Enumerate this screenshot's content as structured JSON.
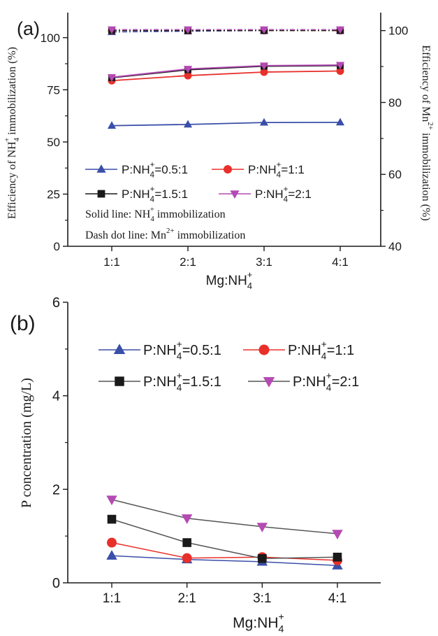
{
  "chart_data": [
    {
      "panel_label": "(a)",
      "type": "line",
      "categories": [
        "1:1",
        "2:1",
        "3:1",
        "4:1"
      ],
      "xlabel": "Mg:NH4+",
      "ylabel_left": "Efficiency of NH4+ immobilization (%)",
      "ylabel_right": "Efficiency of Mn2+ immobilization (%)",
      "ylim_left": [
        0,
        112
      ],
      "yticks_left": [
        0,
        25,
        50,
        75,
        100
      ],
      "ylim_right": [
        40,
        105
      ],
      "yticks_right": [
        40,
        60,
        80,
        100
      ],
      "series": [
        {
          "name": "P:NH4+=0.5:1",
          "axis": "left",
          "style": "solid",
          "marker": "triangle-up",
          "color": "#3a4fa8",
          "values": [
            57.8,
            58.4,
            59.3,
            59.4
          ]
        },
        {
          "name": "P:NH4+=1:1",
          "axis": "left",
          "style": "solid",
          "marker": "circle",
          "color": "#e8302a",
          "values": [
            79.4,
            81.8,
            83.5,
            84.0
          ]
        },
        {
          "name": "P:NH4+=1.5:1",
          "axis": "left",
          "style": "solid",
          "marker": "square",
          "color": "#1a1a1a",
          "values": [
            80.8,
            84.6,
            86.3,
            86.6
          ]
        },
        {
          "name": "P:NH4+=2:1",
          "axis": "left",
          "style": "solid",
          "marker": "triangle-down",
          "color": "#b44ab4",
          "values": [
            81.0,
            85.0,
            86.6,
            86.9
          ]
        },
        {
          "name": "P:NH4+=0.5:1",
          "axis": "right",
          "style": "dashdot",
          "marker": "triangle-up",
          "color": "#3a4fa8",
          "values": [
            99.6,
            99.8,
            100.0,
            100.0
          ]
        },
        {
          "name": "P:NH4+=1:1",
          "axis": "right",
          "style": "dashdot",
          "marker": "circle",
          "color": "#e8302a",
          "values": [
            100.0,
            100.0,
            100.0,
            100.0
          ]
        },
        {
          "name": "P:NH4+=1.5:1",
          "axis": "right",
          "style": "dashdot",
          "marker": "square",
          "color": "#1a1a1a",
          "values": [
            100.0,
            100.0,
            100.0,
            100.0
          ]
        },
        {
          "name": "P:NH4+=2:1",
          "axis": "right",
          "style": "dashdot",
          "marker": "triangle-down",
          "color": "#b44ab4",
          "values": [
            100.3,
            100.3,
            100.3,
            100.3
          ]
        }
      ],
      "notes": [
        {
          "prefix": "Solid line: ",
          "species": "NH4+",
          "suffix": " immobilization"
        },
        {
          "prefix": "Dash dot line: ",
          "species": "Mn2+",
          "suffix": " immobilization"
        }
      ],
      "legend_placement": "center-left, two rows"
    },
    {
      "panel_label": "(b)",
      "type": "line",
      "categories": [
        "1:1",
        "2:1",
        "3:1",
        "4:1"
      ],
      "xlabel": "Mg:NH4+",
      "ylabel": "P concentration (mg/L)",
      "ylim": [
        0,
        6
      ],
      "yticks": [
        0,
        2,
        4,
        6
      ],
      "series": [
        {
          "name": "P:NH4+=0.5:1",
          "marker": "triangle-up",
          "color": "#3a4fa8",
          "values": [
            0.58,
            0.5,
            0.45,
            0.37
          ]
        },
        {
          "name": "P:NH4+=1:1",
          "marker": "circle",
          "color": "#e8302a",
          "values": [
            0.86,
            0.53,
            0.55,
            0.48
          ]
        },
        {
          "name": "P:NH4+=1.5:1",
          "marker": "square",
          "color": "#1a1a1a",
          "values": [
            1.36,
            0.86,
            0.52,
            0.55
          ]
        },
        {
          "name": "P:NH4+=2:1",
          "marker": "triangle-down",
          "color": "#b44ab4",
          "values": [
            1.78,
            1.38,
            1.2,
            1.05
          ]
        }
      ],
      "legend_placement": "top, two rows"
    }
  ]
}
